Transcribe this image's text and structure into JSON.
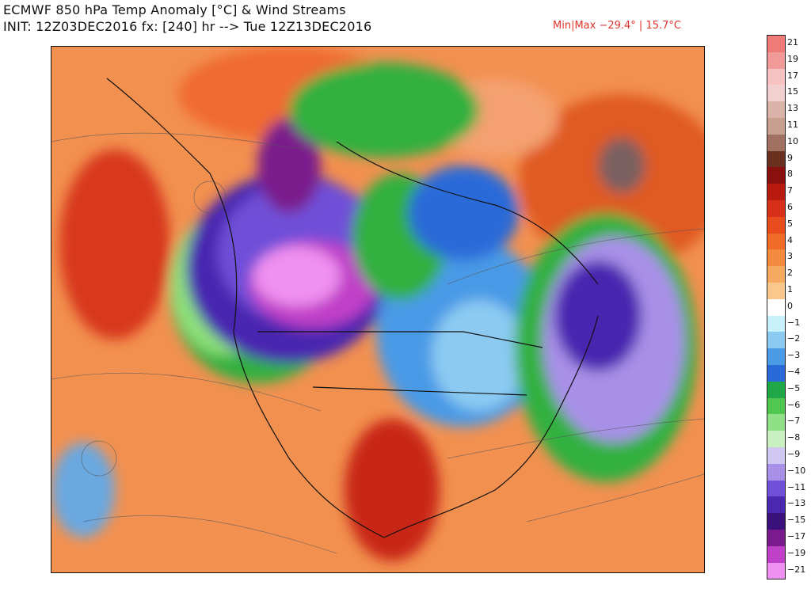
{
  "header": {
    "title": "ECMWF 850 hPa Temp Anomaly [°C] & Wind Streams",
    "init_line": "INIT: 12Z03DEC2016 fx: [240] hr --> Tue 12Z13DEC2016",
    "minmax": "Min|Max −29.4° | 15.7°C"
  },
  "colorbar": {
    "labels": [
      "21",
      "19",
      "17",
      "15",
      "13",
      "11",
      "10",
      "9",
      "8",
      "7",
      "6",
      "5",
      "4",
      "3",
      "2",
      "1",
      "0",
      "−1",
      "−2",
      "−3",
      "−4",
      "−5",
      "−6",
      "−7",
      "−8",
      "−9",
      "−10",
      "−11",
      "−13",
      "−15",
      "−17",
      "−19",
      "−21"
    ],
    "colors": [
      "#f07a78",
      "#f29a98",
      "#f6c2c2",
      "#f2d0d0",
      "#d9b2a8",
      "#c8a090",
      "#a07060",
      "#6a3020",
      "#8a1010",
      "#b81a10",
      "#d83018",
      "#e84c1c",
      "#f06a28",
      "#f48a40",
      "#f6aa60",
      "#fac88a",
      "#ffffff",
      "#c8f0fa",
      "#8ccaf2",
      "#4a9ae6",
      "#2a6ad8",
      "#20a848",
      "#50c850",
      "#90e088",
      "#c8f0c0",
      "#d0c8f0",
      "#a890e8",
      "#7050d8",
      "#4a28b0",
      "#3a107a",
      "#7a1a8c",
      "#c040c8",
      "#f090f0"
    ]
  }
}
